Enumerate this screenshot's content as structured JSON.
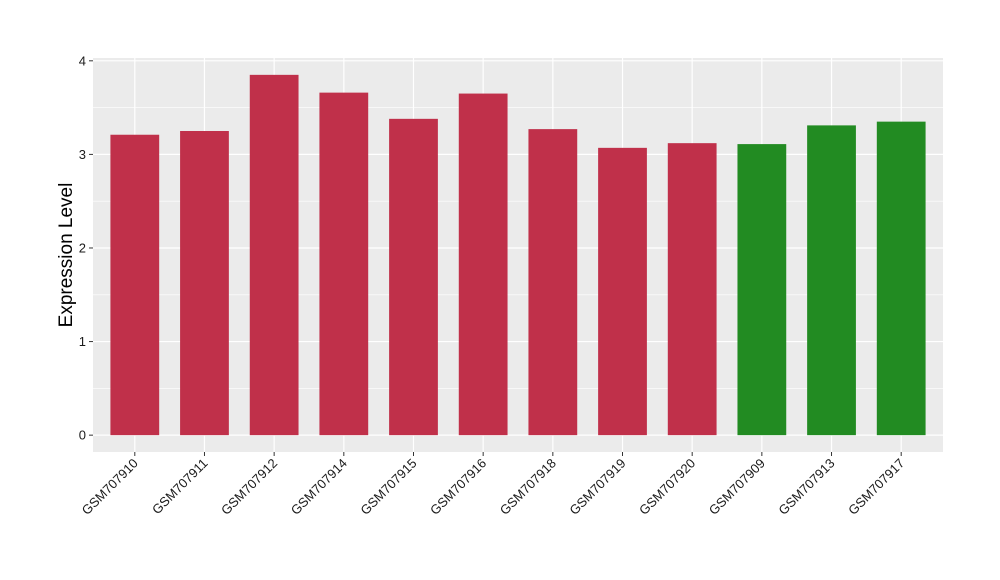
{
  "chart_data": {
    "type": "bar",
    "title": "",
    "xlabel": "",
    "ylabel": "Expression Level",
    "ylim": [
      -0.18,
      4.03
    ],
    "yticks": [
      0,
      1,
      2,
      3,
      4
    ],
    "grid": true,
    "legend": "none",
    "categories": [
      "GSM707910",
      "GSM707911",
      "GSM707912",
      "GSM707914",
      "GSM707915",
      "GSM707916",
      "GSM707918",
      "GSM707919",
      "GSM707920",
      "GSM707909",
      "GSM707913",
      "GSM707917"
    ],
    "values": [
      3.21,
      3.25,
      3.85,
      3.66,
      3.38,
      3.65,
      3.27,
      3.07,
      3.12,
      3.11,
      3.31,
      3.35
    ],
    "bar_colors": [
      "#c0304a",
      "#c0304a",
      "#c0304a",
      "#c0304a",
      "#c0304a",
      "#c0304a",
      "#c0304a",
      "#c0304a",
      "#c0304a",
      "#228b22",
      "#228b22",
      "#228b22"
    ],
    "panel_color": "#ebebeb",
    "grid_color": "#ffffff"
  }
}
